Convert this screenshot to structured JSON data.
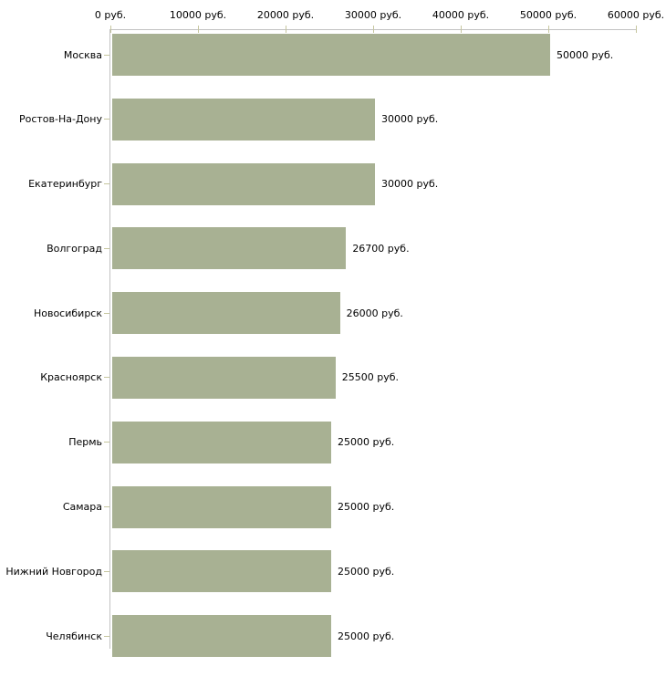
{
  "chart_data": {
    "type": "bar",
    "orientation": "horizontal",
    "unit": "руб.",
    "categories": [
      "Москва",
      "Ростов-На-Дону",
      "Екатеринбург",
      "Волгоград",
      "Новосибирск",
      "Красноярск",
      "Пермь",
      "Самара",
      "Нижний Новгород",
      "Челябинск"
    ],
    "values": [
      50000,
      30000,
      30000,
      26700,
      26000,
      25500,
      25000,
      25000,
      25000,
      25000
    ],
    "value_labels": [
      "50000 руб.",
      "30000 руб.",
      "30000 руб.",
      "26700 руб.",
      "26000 руб.",
      "25500 руб.",
      "25000 руб.",
      "25000 руб.",
      "25000 руб.",
      "25000 руб."
    ],
    "x_ticks": [
      {
        "value": 0,
        "label": "0 руб."
      },
      {
        "value": 10000,
        "label": "10000 руб."
      },
      {
        "value": 20000,
        "label": "20000 руб."
      },
      {
        "value": 30000,
        "label": "30000 руб."
      },
      {
        "value": 40000,
        "label": "40000 руб."
      },
      {
        "value": 50000,
        "label": "50000 руб."
      },
      {
        "value": 60000,
        "label": "60000 руб."
      }
    ],
    "xlim": [
      0,
      60000
    ],
    "grid": false,
    "legend": false,
    "colors": {
      "bar": "#a8b193",
      "axis_line": "#c2c2c2",
      "tick_mark": "#c6c69e",
      "text": "#000000",
      "background": "#ffffff"
    }
  }
}
